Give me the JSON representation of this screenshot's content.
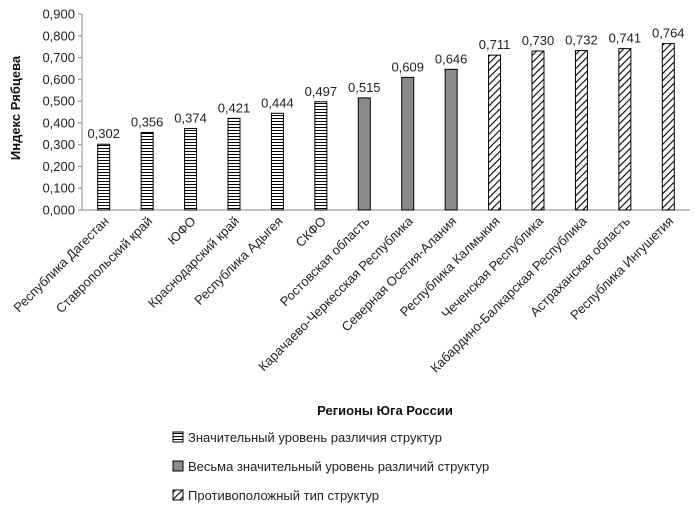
{
  "chart_data": {
    "type": "bar",
    "title": "",
    "xlabel": "Регионы Юга России",
    "ylabel": "Индекс Рябцева",
    "ylim": [
      0,
      0.9
    ],
    "yticks": [
      "0,000",
      "0,100",
      "0,200",
      "0,300",
      "0,400",
      "0,500",
      "0,600",
      "0,700",
      "0,800",
      "0,900"
    ],
    "grid": false,
    "categories": [
      "Республика Дагестан",
      "Ставропольский край",
      "ЮФО",
      "Краснодарский край",
      "Республика Адыгея",
      "СКФО",
      "Ростовская область",
      "Карачаево-Черкесская Республика",
      "Северная Осетия-Алания",
      "Республика Калмыкия",
      "Чеченская Республика",
      "Кабардино-Балкарская Республика",
      "Астраханская область",
      "Республика Ингушетия"
    ],
    "values": [
      0.302,
      0.356,
      0.374,
      0.421,
      0.444,
      0.497,
      0.515,
      0.609,
      0.646,
      0.711,
      0.73,
      0.732,
      0.741,
      0.764
    ],
    "value_labels": [
      "0,302",
      "0,356",
      "0,374",
      "0,421",
      "0,444",
      "0,497",
      "0,515",
      "0,609",
      "0,646",
      "0,711",
      "0,730",
      "0,732",
      "0,741",
      "0,764"
    ],
    "groups": [
      0,
      0,
      0,
      0,
      0,
      0,
      1,
      1,
      1,
      2,
      2,
      2,
      2,
      2
    ],
    "legend": [
      {
        "label": "Значительный уровень различия структур",
        "pattern": "horizontal-lines"
      },
      {
        "label": "Весьма значительный уровень различий структур",
        "pattern": "solid-gray"
      },
      {
        "label": "Противоположный тип структур",
        "pattern": "diagonal-lines"
      }
    ],
    "legend_position": "bottom",
    "colors": {
      "axis": "#888888",
      "bar_stroke": "#000000",
      "solid_fill": "#8a8a8a",
      "text": "#222222"
    }
  }
}
